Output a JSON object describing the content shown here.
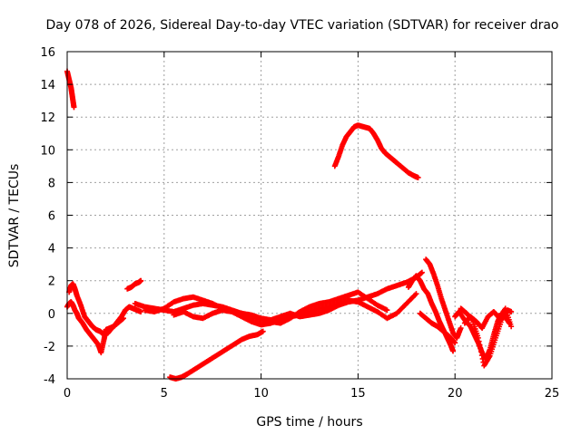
{
  "chart_data": {
    "type": "scatter",
    "title": "Day 078 of 2026, Sidereal Day-to-day VTEC variation (SDTVAR) for receiver drao",
    "xlabel": "GPS time / hours",
    "ylabel": "SDTVAR / TECUs",
    "xlim": [
      0,
      25
    ],
    "ylim": [
      -4,
      16
    ],
    "xticks": [
      0,
      5,
      10,
      15,
      20,
      25
    ],
    "yticks": [
      -4,
      -2,
      0,
      2,
      4,
      6,
      8,
      10,
      12,
      14,
      16
    ],
    "xtick_labels": [
      "0",
      "5",
      "10",
      "15",
      "20",
      "25"
    ],
    "ytick_labels": [
      "-4",
      "-2",
      "0",
      "2",
      "4",
      "6",
      "8",
      "10",
      "12",
      "14",
      "16"
    ],
    "grid": true,
    "marker": "plus",
    "color": "#ff0000",
    "series": [
      {
        "name": "s1",
        "x": [
          0.0,
          0.1,
          0.2,
          0.25,
          0.3,
          0.35
        ],
        "y": [
          14.8,
          14.3,
          13.8,
          13.4,
          13.0,
          12.6
        ]
      },
      {
        "name": "s2",
        "x": [
          0.0,
          0.1,
          0.2,
          0.3,
          0.4,
          0.5,
          0.6,
          0.8,
          1.0,
          1.2,
          1.4,
          1.6,
          1.75,
          1.9,
          2.0,
          2.2,
          2.4,
          2.6,
          2.8,
          3.0,
          3.2,
          3.4,
          3.6,
          3.8
        ],
        "y": [
          0.4,
          0.6,
          0.7,
          0.5,
          0.2,
          0.0,
          -0.3,
          -0.6,
          -1.0,
          -1.3,
          -1.6,
          -1.9,
          -2.4,
          -1.6,
          -1.0,
          -0.9,
          -0.8,
          -0.5,
          -0.2,
          0.2,
          0.4,
          0.3,
          0.2,
          0.1
        ]
      },
      {
        "name": "s3",
        "x": [
          0.1,
          0.2,
          0.3,
          0.4,
          0.5,
          0.7,
          0.9,
          1.1,
          1.3,
          1.5,
          1.7,
          1.9,
          2.1,
          2.3,
          2.6,
          2.9
        ],
        "y": [
          1.3,
          1.7,
          1.8,
          1.5,
          1.1,
          0.5,
          -0.2,
          -0.5,
          -0.8,
          -1.0,
          -1.1,
          -1.3,
          -1.2,
          -0.9,
          -0.6,
          -0.3
        ]
      },
      {
        "name": "s4",
        "x": [
          3.1,
          3.3,
          3.5,
          3.7,
          3.8
        ],
        "y": [
          1.5,
          1.6,
          1.8,
          1.9,
          2.0
        ]
      },
      {
        "name": "s5",
        "x": [
          3.5,
          4.0,
          4.5,
          5.0,
          5.5,
          6.0,
          6.5,
          7.0,
          7.5,
          8.0,
          8.5,
          9.0,
          9.5,
          10.0,
          10.5,
          11.0,
          11.5,
          12.0,
          12.5,
          13.0,
          13.5,
          14.0,
          14.5,
          15.0,
          15.5,
          16.0,
          16.5,
          17.0,
          17.5,
          18.0,
          18.3
        ],
        "y": [
          0.6,
          0.4,
          0.3,
          0.2,
          0.1,
          0.3,
          0.5,
          0.6,
          0.5,
          0.4,
          0.2,
          0.0,
          -0.1,
          -0.3,
          -0.4,
          -0.2,
          0.0,
          -0.2,
          -0.1,
          0.0,
          0.2,
          0.5,
          0.7,
          0.8,
          1.0,
          1.2,
          1.5,
          1.7,
          1.9,
          2.2,
          2.5
        ]
      },
      {
        "name": "s6",
        "x": [
          4.0,
          4.5,
          5.0,
          5.5,
          6.0,
          6.5,
          7.0,
          7.5,
          8.0,
          8.5,
          9.0,
          9.5,
          10.0,
          10.5,
          11.0,
          11.5,
          12.0,
          12.5,
          13.0,
          13.5,
          14.0,
          14.5,
          15.0,
          15.5,
          16.0,
          16.5
        ],
        "y": [
          0.2,
          0.1,
          0.3,
          0.7,
          0.9,
          1.0,
          0.8,
          0.6,
          0.3,
          0.1,
          0.0,
          -0.2,
          -0.4,
          -0.5,
          -0.6,
          -0.3,
          0.1,
          0.4,
          0.6,
          0.7,
          0.9,
          1.1,
          1.3,
          0.9,
          0.5,
          0.2
        ]
      },
      {
        "name": "s7",
        "x": [
          5.5,
          6.0,
          6.5,
          7.0,
          7.5,
          8.0,
          8.5,
          9.0,
          9.5,
          10.0,
          10.5,
          11.0,
          11.5,
          12.0,
          12.5,
          13.0,
          13.5,
          14.0,
          14.5,
          15.0,
          15.5,
          16.0,
          16.5,
          17.0,
          17.5,
          18.0
        ],
        "y": [
          -0.1,
          0.1,
          -0.2,
          -0.3,
          0.0,
          0.2,
          0.1,
          -0.2,
          -0.5,
          -0.7,
          -0.6,
          -0.4,
          -0.2,
          -0.1,
          0.1,
          0.3,
          0.4,
          0.6,
          0.8,
          0.7,
          0.4,
          0.1,
          -0.3,
          0.0,
          0.6,
          1.2
        ]
      },
      {
        "name": "s8",
        "x": [
          5.3,
          5.6,
          5.9,
          6.2,
          6.6,
          7.0,
          7.4,
          7.8,
          8.2,
          8.6,
          9.0,
          9.4,
          9.8,
          10.1
        ],
        "y": [
          -3.9,
          -4.0,
          -3.9,
          -3.7,
          -3.4,
          -3.1,
          -2.8,
          -2.5,
          -2.2,
          -1.9,
          -1.6,
          -1.4,
          -1.3,
          -1.1
        ]
      },
      {
        "name": "s9",
        "x": [
          13.8,
          14.0,
          14.2,
          14.4,
          14.6,
          14.8,
          15.0,
          15.3,
          15.6,
          15.8,
          16.0,
          16.2,
          16.4,
          16.6,
          16.8,
          17.0,
          17.3,
          17.6,
          17.9,
          18.1
        ],
        "y": [
          9.0,
          9.6,
          10.3,
          10.8,
          11.1,
          11.4,
          11.5,
          11.4,
          11.3,
          11.0,
          10.6,
          10.1,
          9.8,
          9.6,
          9.4,
          9.2,
          8.9,
          8.6,
          8.4,
          8.3
        ]
      },
      {
        "name": "s10",
        "x": [
          17.6,
          17.8,
          18.0,
          18.2,
          18.4,
          18.6,
          18.8,
          19.0,
          19.2,
          19.4,
          19.6,
          19.8,
          19.9
        ],
        "y": [
          1.6,
          2.0,
          2.3,
          2.0,
          1.5,
          1.2,
          0.6,
          0.1,
          -0.5,
          -1.0,
          -1.5,
          -2.0,
          -2.3
        ]
      },
      {
        "name": "s11",
        "x": [
          18.5,
          18.7,
          18.9,
          19.1,
          19.3,
          19.5,
          19.7,
          19.9,
          20.1,
          20.3
        ],
        "y": [
          3.3,
          3.0,
          2.4,
          1.7,
          0.9,
          0.2,
          -0.5,
          -1.2,
          -1.5,
          -0.9
        ]
      },
      {
        "name": "s12",
        "x": [
          18.2,
          18.5,
          18.8,
          19.1,
          19.4,
          19.7,
          20.0
        ],
        "y": [
          0.0,
          -0.3,
          -0.6,
          -0.8,
          -1.1,
          -1.4,
          -1.8
        ]
      },
      {
        "name": "s13",
        "x": [
          20.0,
          20.2,
          20.5,
          20.8,
          21.0,
          21.2,
          21.4,
          21.6,
          21.8,
          22.0,
          22.2,
          22.4,
          22.6,
          22.8
        ],
        "y": [
          -0.2,
          0.1,
          -0.4,
          -0.8,
          -1.3,
          -1.8,
          -2.4,
          -2.8,
          -2.2,
          -1.3,
          -0.5,
          0.0,
          -0.2,
          -0.6
        ]
      },
      {
        "name": "s14",
        "x": [
          20.3,
          20.6,
          20.9,
          21.2,
          21.5,
          21.8,
          22.1,
          22.4,
          22.7,
          22.9
        ],
        "y": [
          0.3,
          0.0,
          -0.4,
          -1.5,
          -3.2,
          -2.6,
          -1.5,
          -0.4,
          0.2,
          0.1
        ]
      },
      {
        "name": "s15",
        "x": [
          20.5,
          20.8,
          21.1,
          21.4,
          21.7,
          22.0,
          22.3,
          22.6,
          22.9
        ],
        "y": [
          -0.6,
          -0.2,
          -0.5,
          -0.9,
          -0.2,
          0.1,
          -0.3,
          0.3,
          -0.8
        ]
      }
    ]
  }
}
